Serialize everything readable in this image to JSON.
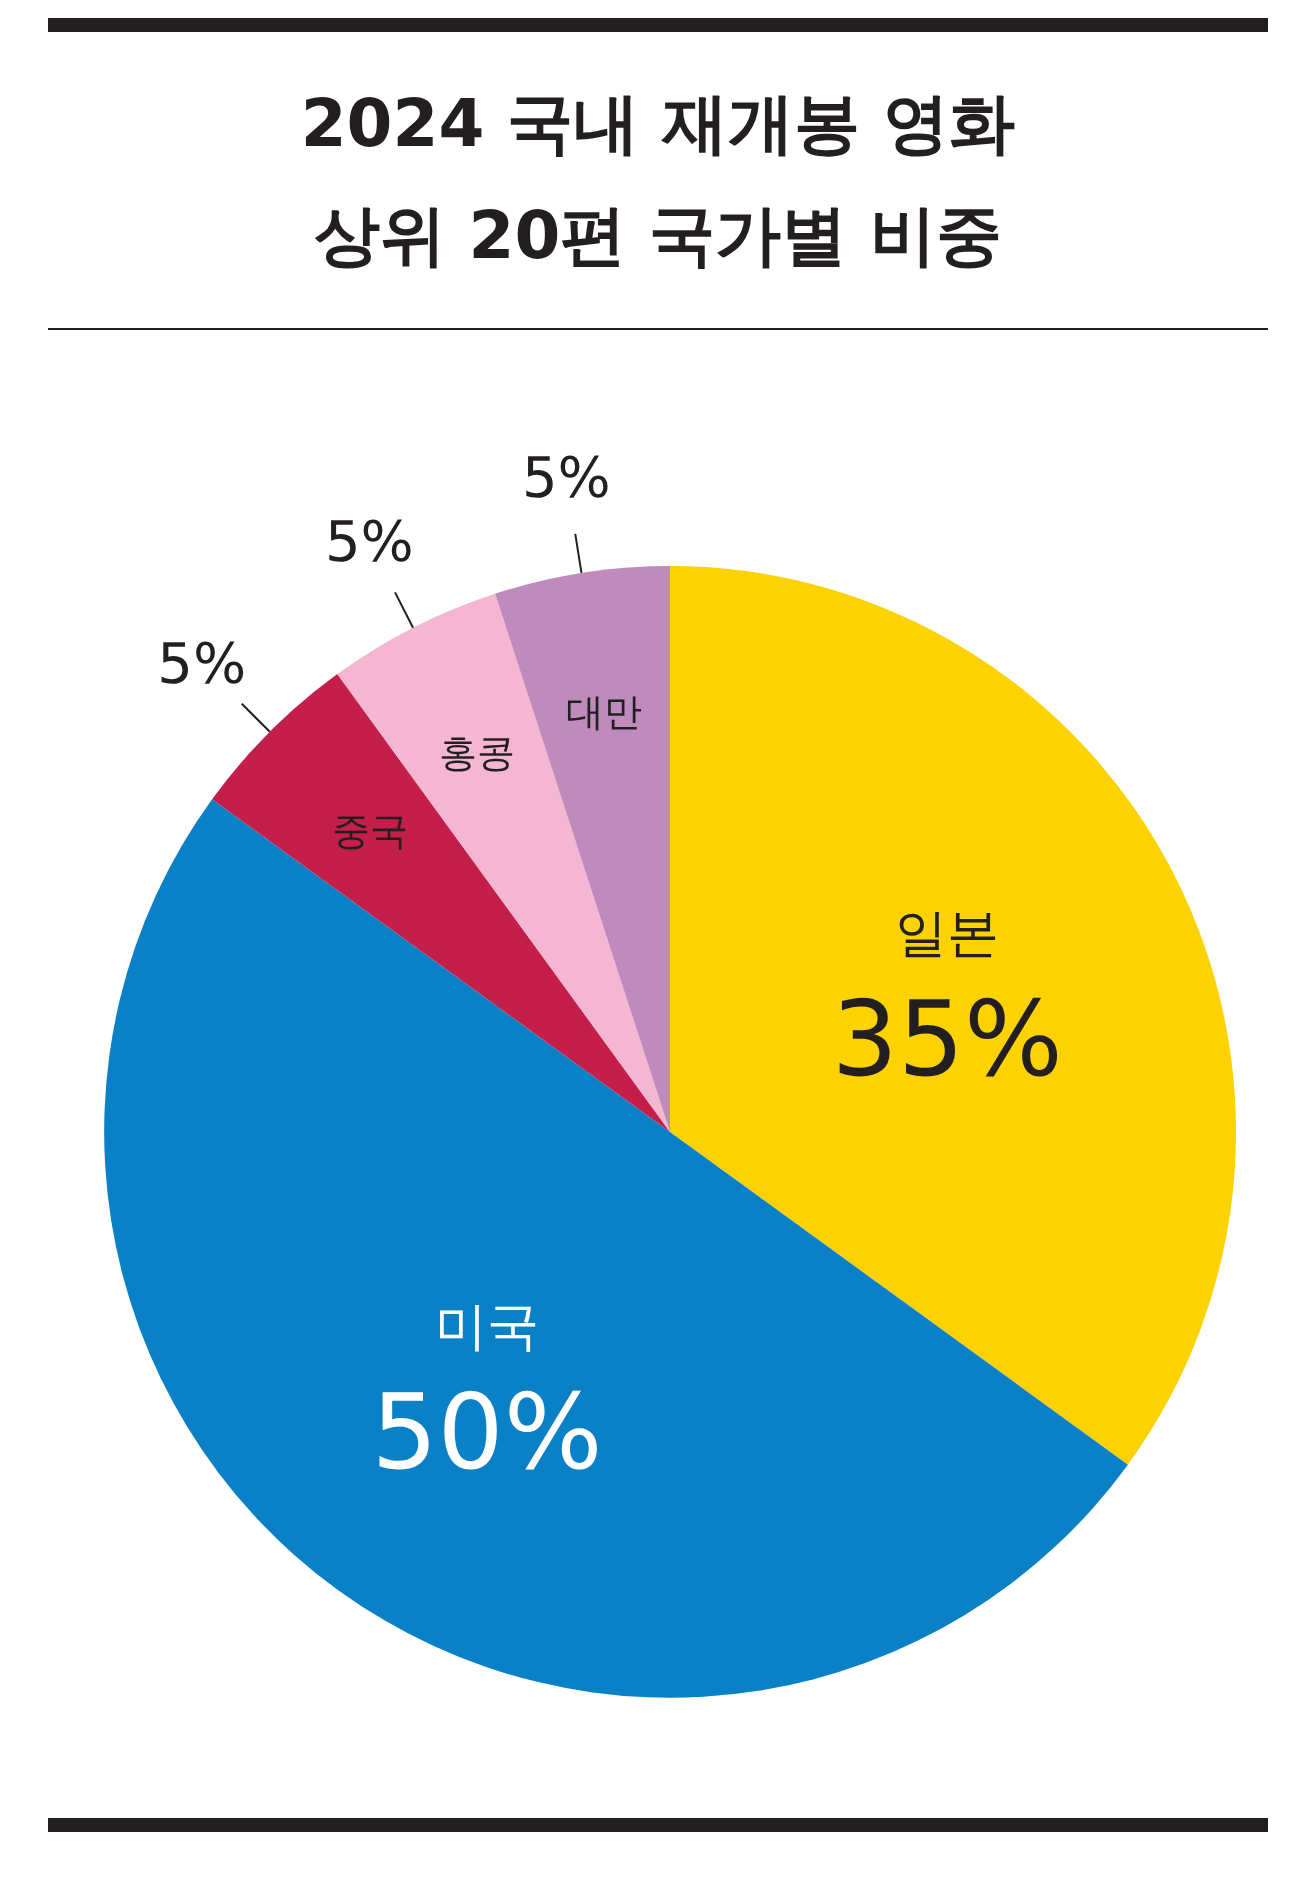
{
  "chart_data": {
    "type": "pie",
    "title": "2024 국내 재개봉 영화\n상위 20편 국가별 비중",
    "categories": [
      "일본",
      "미국",
      "중국",
      "홍콩",
      "대만"
    ],
    "values": [
      35,
      50,
      5,
      5,
      5
    ],
    "colors": [
      "#fcd200",
      "#0a80c6",
      "#c41e4a",
      "#f4b6d0",
      "#bf8bbd"
    ],
    "value_labels": [
      "35%",
      "50%",
      "5%",
      "5%",
      "5%"
    ]
  }
}
